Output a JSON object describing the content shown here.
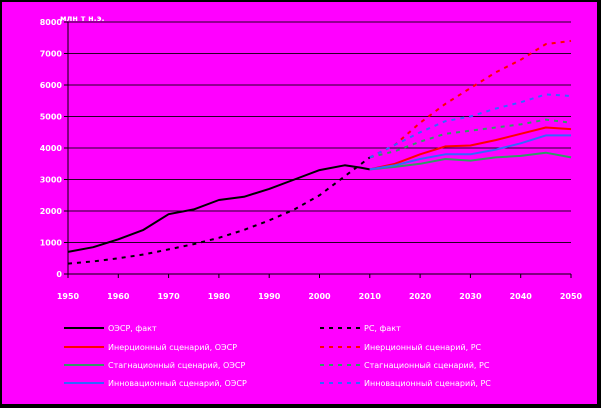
{
  "chart_data": {
    "type": "line",
    "ylabel": "млн т н.э.",
    "xlim": [
      1950,
      2050
    ],
    "ylim": [
      0,
      8000
    ],
    "x_ticks": [
      "1950",
      "1960",
      "1970",
      "1980",
      "1990",
      "2000",
      "2010",
      "2020",
      "2030",
      "2040",
      "2050"
    ],
    "y_ticks": [
      "0",
      "1000",
      "2000",
      "3000",
      "4000",
      "5000",
      "6000",
      "7000",
      "8000"
    ],
    "grid": "horizontal",
    "legend_position": "bottom",
    "series": [
      {
        "name": "ОЭСР, факт",
        "color": "#000000",
        "dash": "solid",
        "x": [
          1950,
          1955,
          1960,
          1965,
          1970,
          1975,
          1980,
          1985,
          1990,
          1995,
          2000,
          2005,
          2008,
          2010
        ],
        "y": [
          700,
          850,
          1100,
          1400,
          1900,
          2050,
          2350,
          2450,
          2700,
          3000,
          3300,
          3450,
          3380,
          3320
        ]
      },
      {
        "name": "РС, факт",
        "color": "#000000",
        "dash": "dash",
        "x": [
          1950,
          1955,
          1960,
          1965,
          1970,
          1975,
          1980,
          1985,
          1990,
          1995,
          2000,
          2005,
          2010
        ],
        "y": [
          330,
          400,
          500,
          620,
          780,
          950,
          1150,
          1400,
          1700,
          2050,
          2500,
          3100,
          3700
        ]
      },
      {
        "name": "Инерционный сценарий, ОЭСР",
        "color": "#ff0000",
        "dash": "solid",
        "x": [
          2010,
          2015,
          2020,
          2025,
          2030,
          2035,
          2040,
          2045,
          2050
        ],
        "y": [
          3320,
          3500,
          3800,
          4050,
          4080,
          4250,
          4450,
          4650,
          4600
        ]
      },
      {
        "name": "Инерционный сценарий, РС",
        "color": "#ff0000",
        "dash": "dash",
        "x": [
          2010,
          2015,
          2020,
          2025,
          2030,
          2035,
          2040,
          2045,
          2050
        ],
        "y": [
          3700,
          4100,
          4800,
          5400,
          5900,
          6400,
          6800,
          7300,
          7400
        ]
      },
      {
        "name": "Стагнационный сценарий, ОЭСР",
        "color": "#339966",
        "dash": "solid",
        "x": [
          2010,
          2015,
          2020,
          2025,
          2030,
          2035,
          2040,
          2045,
          2050
        ],
        "y": [
          3320,
          3400,
          3500,
          3650,
          3600,
          3700,
          3750,
          3850,
          3700
        ]
      },
      {
        "name": "Стагнационный сценарий, РС",
        "color": "#339966",
        "dash": "dash",
        "x": [
          2010,
          2015,
          2020,
          2025,
          2030,
          2035,
          2040,
          2045,
          2050
        ],
        "y": [
          3700,
          3900,
          4200,
          4450,
          4550,
          4650,
          4750,
          4900,
          4800
        ]
      },
      {
        "name": "Инновационный сценарий, ОЭСР",
        "color": "#3366ff",
        "dash": "solid",
        "x": [
          2010,
          2015,
          2020,
          2025,
          2030,
          2035,
          2040,
          2045,
          2050
        ],
        "y": [
          3320,
          3450,
          3650,
          3800,
          3800,
          3950,
          4150,
          4400,
          4400
        ]
      },
      {
        "name": "Инновационный сценарий, РС",
        "color": "#3366ff",
        "dash": "dash",
        "x": [
          2010,
          2015,
          2020,
          2025,
          2030,
          2035,
          2040,
          2045,
          2050
        ],
        "y": [
          3700,
          4100,
          4500,
          4850,
          5000,
          5250,
          5450,
          5700,
          5650
        ]
      }
    ]
  }
}
